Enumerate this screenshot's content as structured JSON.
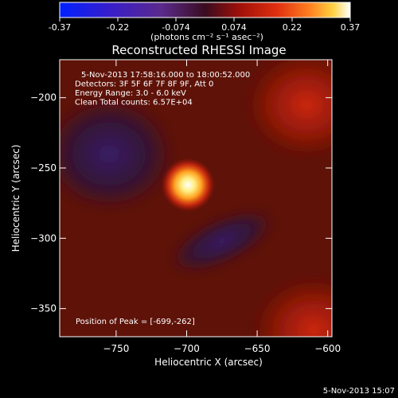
{
  "chart_data": {
    "type": "heatmap",
    "title": "Reconstructed RHESSI Image",
    "colorbar": {
      "min": -0.37,
      "max": 0.37,
      "ticks": [
        "-0.37",
        "-0.22",
        "-0.074",
        "0.074",
        "0.22",
        "0.37"
      ],
      "unit_label": "(photons cm⁻² s⁻¹ asec⁻²)",
      "colors": [
        "#0020ff",
        "#3a1ec8",
        "#5b2a8c",
        "#4a1030",
        "#a01008",
        "#e03010",
        "#ff8020",
        "#ffd040",
        "#ffffff"
      ]
    },
    "annotations": [
      "5-Nov-2013 17:58:16.000 to 18:00:52.000",
      "Detectors: 3F 5F 6F 7F 8F 9F, Att 0",
      "Energy Range: 3.0 - 6.0 keV",
      "Clean    Total counts: 6.57E+04"
    ],
    "peak_label": "Position of Peak = [-699,-262]",
    "xlabel": "Heliocentric X (arcsec)",
    "ylabel": "Heliocentric Y (arcsec)",
    "xlim": [
      -790,
      -597
    ],
    "ylim": [
      -370,
      -173
    ],
    "xticks": [
      -750,
      -700,
      -650,
      -600
    ],
    "yticks": [
      -200,
      -250,
      -300,
      -350
    ],
    "peak": {
      "x": -699,
      "y": -262,
      "value": 0.37
    },
    "features": [
      {
        "kind": "negative_trough",
        "x": -675,
        "y": -302,
        "value": -0.12
      },
      {
        "kind": "negative_region",
        "x": -755,
        "y": -240,
        "value": -0.1
      },
      {
        "kind": "positive_region",
        "x": -610,
        "y": -365,
        "value": 0.16
      },
      {
        "kind": "positive_region",
        "x": -615,
        "y": -205,
        "value": 0.1
      }
    ]
  },
  "footer": {
    "timestamp": "5-Nov-2013 15:07"
  }
}
